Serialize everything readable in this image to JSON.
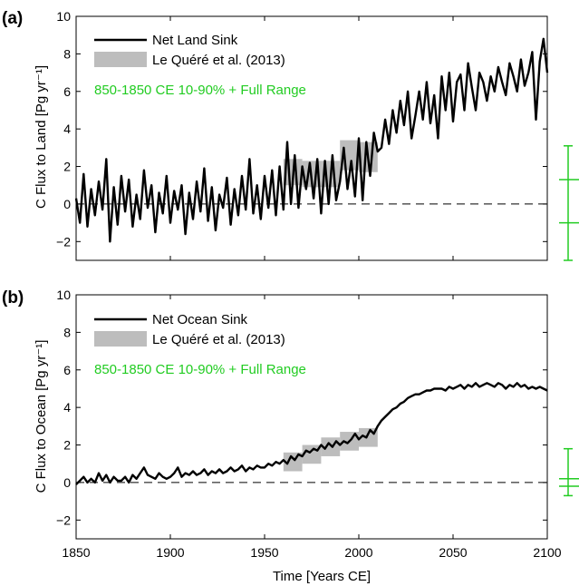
{
  "figure": {
    "xlabel": "Time [Years CE]",
    "colors": {
      "series": "#000000",
      "obs": "#bdbdbd",
      "range": "#22cc22",
      "zero_line": "#000000"
    }
  },
  "chart_data": [
    {
      "type": "line",
      "panel_label": "(a)",
      "ylabel": "C Flux to Land [Pg yr⁻¹]",
      "xlim": [
        1850,
        2100
      ],
      "ylim": [
        -3,
        10
      ],
      "xticks": [
        1850,
        1900,
        1950,
        2000,
        2050,
        2100
      ],
      "yticks": [
        -2,
        0,
        2,
        4,
        6,
        8,
        10
      ],
      "show_xticklabels": false,
      "legend": {
        "placement": "top-left",
        "series_label": "Net Land Sink",
        "obs_label": "Le Quéré et al. (2013)",
        "range_label": "850-1850 CE 10-90% + Full Range"
      },
      "series": {
        "name": "Net Land Sink",
        "x": [
          1850,
          1852,
          1854,
          1856,
          1858,
          1860,
          1862,
          1864,
          1866,
          1868,
          1870,
          1872,
          1874,
          1876,
          1878,
          1880,
          1882,
          1884,
          1886,
          1888,
          1890,
          1892,
          1894,
          1896,
          1898,
          1900,
          1902,
          1904,
          1906,
          1908,
          1910,
          1912,
          1914,
          1916,
          1918,
          1920,
          1922,
          1924,
          1926,
          1928,
          1930,
          1932,
          1934,
          1936,
          1938,
          1940,
          1942,
          1944,
          1946,
          1948,
          1950,
          1952,
          1954,
          1956,
          1958,
          1960,
          1962,
          1964,
          1966,
          1968,
          1970,
          1972,
          1974,
          1976,
          1978,
          1980,
          1982,
          1984,
          1986,
          1988,
          1990,
          1992,
          1994,
          1996,
          1998,
          2000,
          2002,
          2004,
          2006,
          2008,
          2010,
          2012,
          2014,
          2016,
          2018,
          2020,
          2022,
          2024,
          2026,
          2028,
          2030,
          2032,
          2034,
          2036,
          2038,
          2040,
          2042,
          2044,
          2046,
          2048,
          2050,
          2052,
          2054,
          2056,
          2058,
          2060,
          2062,
          2064,
          2066,
          2068,
          2070,
          2072,
          2074,
          2076,
          2078,
          2080,
          2082,
          2084,
          2086,
          2088,
          2090,
          2092,
          2094,
          2096,
          2098,
          2100
        ],
        "y": [
          0.3,
          -1.0,
          1.6,
          -1.2,
          0.8,
          -0.6,
          1.2,
          -0.3,
          2.4,
          -2.0,
          0.9,
          -1.1,
          1.5,
          -0.4,
          1.3,
          -1.2,
          0.5,
          -0.8,
          1.8,
          -0.2,
          1.0,
          -1.5,
          0.6,
          -0.5,
          1.5,
          -1.0,
          0.7,
          -0.3,
          1.0,
          -1.6,
          0.6,
          -0.8,
          1.2,
          -0.4,
          1.9,
          -0.9,
          0.9,
          -1.4,
          0.5,
          -0.2,
          1.4,
          -1.1,
          0.8,
          -0.6,
          1.5,
          -0.3,
          2.4,
          -0.5,
          1.0,
          -0.8,
          1.5,
          -0.2,
          1.8,
          -0.6,
          2.0,
          -0.3,
          3.3,
          0.0,
          2.6,
          -0.2,
          2.0,
          0.8,
          2.2,
          0.3,
          2.4,
          -0.5,
          2.3,
          0.0,
          2.6,
          0.2,
          1.2,
          3.0,
          0.8,
          2.3,
          0.4,
          3.5,
          0.2,
          3.3,
          1.5,
          3.8,
          2.8,
          3.0,
          4.5,
          3.2,
          5.0,
          3.8,
          5.5,
          4.2,
          6.0,
          3.5,
          4.7,
          6.0,
          4.5,
          6.5,
          4.3,
          5.8,
          3.5,
          6.8,
          5.0,
          7.0,
          4.4,
          6.5,
          6.9,
          5.0,
          7.5,
          6.2,
          5.0,
          7.0,
          6.5,
          5.5,
          6.8,
          6.0,
          7.3,
          6.5,
          5.8,
          7.5,
          6.8,
          6.0,
          7.7,
          6.3,
          7.0,
          8.1,
          4.5,
          7.6,
          8.8,
          7.0
        ]
      },
      "observations": [
        {
          "x0": 1960,
          "x1": 1970,
          "y": 1.7,
          "half": 0.7
        },
        {
          "x0": 1970,
          "x1": 1980,
          "y": 1.6,
          "half": 0.7
        },
        {
          "x0": 1980,
          "x1": 1990,
          "y": 1.6,
          "half": 0.7
        },
        {
          "x0": 1990,
          "x1": 2000,
          "y": 2.6,
          "half": 0.8
        },
        {
          "x0": 2000,
          "x1": 2010,
          "y": 2.5,
          "half": 0.8
        }
      ],
      "range": {
        "p10": -1.0,
        "p90": 1.3,
        "min": -3.0,
        "max": 3.1
      }
    },
    {
      "type": "line",
      "panel_label": "(b)",
      "ylabel": "C Flux to Ocean [Pg yr⁻¹]",
      "xlim": [
        1850,
        2100
      ],
      "ylim": [
        -3,
        10
      ],
      "xticks": [
        1850,
        1900,
        1950,
        2000,
        2050,
        2100
      ],
      "yticks": [
        -2,
        0,
        2,
        4,
        6,
        8,
        10
      ],
      "show_xticklabels": true,
      "legend": {
        "placement": "top-left",
        "series_label": "Net Ocean Sink",
        "obs_label": "Le Quéré et al. (2013)",
        "range_label": "850-1850 CE 10-90% + Full Range"
      },
      "series": {
        "name": "Net Ocean Sink",
        "x": [
          1850,
          1852,
          1854,
          1856,
          1858,
          1860,
          1862,
          1864,
          1866,
          1868,
          1870,
          1872,
          1874,
          1876,
          1878,
          1880,
          1882,
          1884,
          1886,
          1888,
          1890,
          1892,
          1894,
          1896,
          1898,
          1900,
          1902,
          1904,
          1906,
          1908,
          1910,
          1912,
          1914,
          1916,
          1918,
          1920,
          1922,
          1924,
          1926,
          1928,
          1930,
          1932,
          1934,
          1936,
          1938,
          1940,
          1942,
          1944,
          1946,
          1948,
          1950,
          1952,
          1954,
          1956,
          1958,
          1960,
          1962,
          1964,
          1966,
          1968,
          1970,
          1972,
          1974,
          1976,
          1978,
          1980,
          1982,
          1984,
          1986,
          1988,
          1990,
          1992,
          1994,
          1996,
          1998,
          2000,
          2002,
          2004,
          2006,
          2008,
          2010,
          2012,
          2014,
          2016,
          2018,
          2020,
          2022,
          2024,
          2026,
          2028,
          2030,
          2032,
          2034,
          2036,
          2038,
          2040,
          2042,
          2044,
          2046,
          2048,
          2050,
          2052,
          2054,
          2056,
          2058,
          2060,
          2062,
          2064,
          2066,
          2068,
          2070,
          2072,
          2074,
          2076,
          2078,
          2080,
          2082,
          2084,
          2086,
          2088,
          2090,
          2092,
          2094,
          2096,
          2098,
          2100
        ],
        "y": [
          -0.1,
          0.1,
          0.3,
          0.0,
          0.2,
          0.0,
          0.5,
          0.1,
          0.4,
          0.0,
          0.3,
          0.1,
          0.1,
          0.3,
          0.0,
          0.4,
          0.2,
          0.5,
          0.8,
          0.4,
          0.3,
          0.2,
          0.5,
          0.3,
          0.2,
          0.3,
          0.5,
          0.8,
          0.3,
          0.5,
          0.4,
          0.6,
          0.4,
          0.5,
          0.7,
          0.4,
          0.6,
          0.5,
          0.7,
          0.5,
          0.6,
          0.8,
          0.6,
          0.7,
          0.9,
          0.6,
          0.8,
          0.7,
          0.9,
          0.8,
          0.8,
          1.0,
          0.9,
          1.1,
          1.0,
          1.2,
          1.0,
          1.4,
          1.2,
          1.5,
          1.4,
          1.7,
          1.6,
          1.8,
          1.7,
          2.0,
          1.8,
          2.1,
          1.9,
          2.2,
          2.0,
          2.2,
          2.1,
          2.3,
          2.6,
          2.3,
          2.5,
          2.4,
          2.8,
          2.6,
          3.0,
          3.3,
          3.5,
          3.7,
          3.9,
          4.0,
          4.2,
          4.3,
          4.5,
          4.6,
          4.7,
          4.7,
          4.8,
          4.9,
          4.9,
          5.0,
          5.0,
          5.0,
          4.9,
          5.1,
          5.0,
          5.1,
          5.2,
          5.0,
          5.2,
          5.1,
          5.3,
          5.1,
          5.2,
          5.3,
          5.2,
          5.1,
          5.3,
          5.2,
          5.0,
          5.2,
          5.1,
          5.3,
          5.1,
          5.2,
          5.0,
          5.1,
          5.0,
          5.1,
          5.0,
          4.9
        ]
      },
      "observations": [
        {
          "x0": 1960,
          "x1": 1970,
          "y": 1.1,
          "half": 0.5
        },
        {
          "x0": 1970,
          "x1": 1980,
          "y": 1.5,
          "half": 0.5
        },
        {
          "x0": 1980,
          "x1": 1990,
          "y": 1.9,
          "half": 0.5
        },
        {
          "x0": 1990,
          "x1": 2000,
          "y": 2.2,
          "half": 0.5
        },
        {
          "x0": 2000,
          "x1": 2010,
          "y": 2.4,
          "half": 0.5
        }
      ],
      "range": {
        "p10": -0.2,
        "p90": 0.2,
        "min": -0.7,
        "max": 1.8
      }
    }
  ]
}
